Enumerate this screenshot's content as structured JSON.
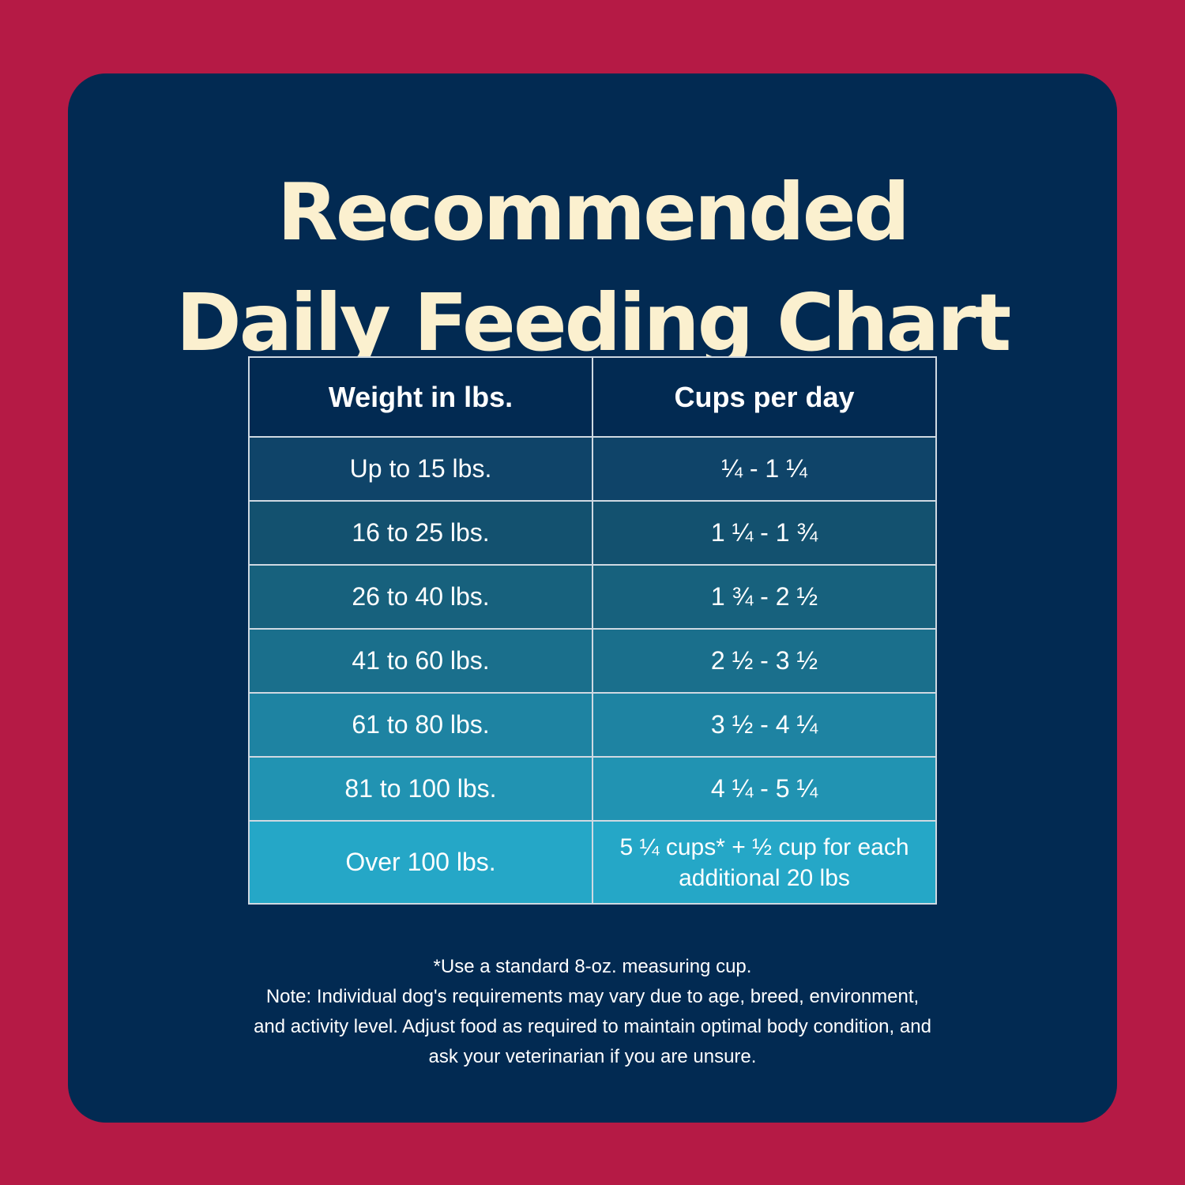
{
  "title": {
    "line1": "Recommended",
    "line2": "Daily Feeding Chart"
  },
  "table": {
    "headers": [
      "Weight in lbs.",
      "Cups per day"
    ],
    "rows": [
      {
        "weight": "Up to 15 lbs.",
        "cups": "¼ - 1 ¼",
        "color": "#0f4469"
      },
      {
        "weight": "16 to 25 lbs.",
        "cups": "1 ¼ - 1 ¾",
        "color": "#13516f"
      },
      {
        "weight": "26 to 40 lbs.",
        "cups": "1 ¾ - 2 ½",
        "color": "#17617d"
      },
      {
        "weight": "41 to 60 lbs.",
        "cups": "2 ½ - 3 ½",
        "color": "#1a6f8c"
      },
      {
        "weight": "61 to 80 lbs.",
        "cups": "3 ½ - 4 ¼",
        "color": "#1e83a2"
      },
      {
        "weight": "81 to 100 lbs.",
        "cups": "4 ¼ - 5 ¼",
        "color": "#2193b2"
      },
      {
        "weight": "Over 100 lbs.",
        "cups": "5 ¼ cups* + ½ cup for each additional 20 lbs",
        "color": "#25a7c7"
      }
    ]
  },
  "footnote": {
    "line1": "*Use a standard 8-oz. measuring cup.",
    "line2": "Note: Individual dog's requirements may vary due to age, breed, environment,",
    "line3": "and activity level. Adjust food as required to maintain optimal body condition, and",
    "line4": "ask your veterinarian if you are unsure."
  },
  "colors": {
    "background": "#b51a45",
    "panel": "#022a52",
    "title": "#fbf0cf"
  }
}
